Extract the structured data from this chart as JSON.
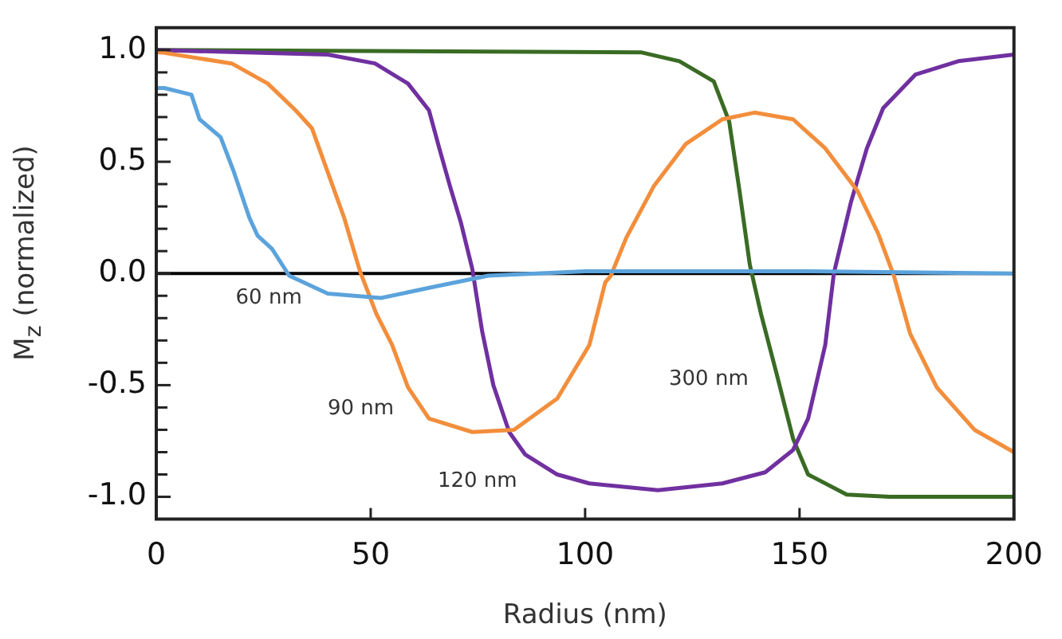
{
  "chart_data": {
    "type": "line",
    "xlabel": "Radius (nm)",
    "ylabel": "M$_{z}$ (normalized)",
    "xlim": [
      0,
      200
    ],
    "xticks": [
      0,
      50,
      100,
      150,
      200
    ],
    "ylim": [
      -1.1,
      1.1
    ],
    "yticks": [
      {
        "value": -1.0,
        "label": "-1.0"
      },
      {
        "value": -0.9,
        "label": null
      },
      {
        "value": -0.8,
        "label": null
      },
      {
        "value": -0.7,
        "label": null
      },
      {
        "value": -0.6,
        "label": null
      },
      {
        "value": -0.5,
        "label": "-0.5"
      },
      {
        "value": -0.4,
        "label": null
      },
      {
        "value": -0.3,
        "label": null
      },
      {
        "value": -0.2,
        "label": null
      },
      {
        "value": -0.1,
        "label": null
      },
      {
        "value": 0,
        "label": "0.0"
      },
      {
        "value": 0.1,
        "label": null
      },
      {
        "value": 0.2,
        "label": null
      },
      {
        "value": 0.3,
        "label": null
      },
      {
        "value": 0.4,
        "label": null
      },
      {
        "value": 0.5,
        "label": "0.5"
      },
      {
        "value": 0.6,
        "label": null
      },
      {
        "value": 0.7,
        "label": null
      },
      {
        "value": 0.8,
        "label": null
      },
      {
        "value": 0.9,
        "label": null
      },
      {
        "value": 1.0,
        "label": "1.0"
      }
    ],
    "grid": false,
    "legend": false,
    "marker": "none",
    "line_style": "solid",
    "ref_lines": [
      {
        "axis": "y",
        "value": 0,
        "color": "#000000"
      }
    ],
    "series": [
      {
        "name": "60 nm",
        "color": "#5ba3dc",
        "x": [
          0,
          1.9,
          8.2,
          10.1,
          15,
          18,
          21.7,
          23.6,
          27,
          31,
          40,
          52.4,
          64.7,
          77.4,
          100,
          150,
          200
        ],
        "values": [
          0.83,
          0.83,
          0.8,
          0.69,
          0.61,
          0.46,
          0.25,
          0.17,
          0.11,
          -0.01,
          -0.09,
          -0.11,
          -0.06,
          -0.01,
          0.01,
          0.01,
          0.0
        ]
      },
      {
        "name": "90 nm",
        "color": "#f28e3c",
        "x": [
          0,
          1,
          17.6,
          26,
          32.5,
          36.3,
          39.3,
          43.8,
          47.5,
          51.3,
          55,
          58.7,
          63.6,
          73.7,
          83.4,
          93.5,
          101,
          104.7,
          106,
          109.6,
          116,
          123.5,
          132,
          139.5,
          148.5,
          156,
          163.5,
          168.3,
          172,
          175.8,
          182,
          190.8,
          200
        ],
        "values": [
          0.99,
          0.99,
          0.94,
          0.85,
          0.73,
          0.65,
          0.49,
          0.25,
          0.01,
          -0.18,
          -0.32,
          -0.51,
          -0.65,
          -0.71,
          -0.7,
          -0.56,
          -0.32,
          -0.04,
          -0.01,
          0.16,
          0.39,
          0.58,
          0.69,
          0.72,
          0.69,
          0.56,
          0.37,
          0.18,
          -0.01,
          -0.27,
          -0.51,
          -0.7,
          -0.8
        ]
      },
      {
        "name": "120 nm",
        "color": "#7030a0",
        "x": [
          0,
          40,
          51,
          58.7,
          63.6,
          66,
          68.5,
          71,
          73.7,
          76,
          78.6,
          82.3,
          86,
          93.5,
          101,
          117,
          132,
          142,
          148.5,
          152,
          156,
          158,
          162,
          165.7,
          169.5,
          177,
          187,
          200
        ],
        "values": [
          1.0,
          0.98,
          0.94,
          0.85,
          0.73,
          0.56,
          0.39,
          0.23,
          0.02,
          -0.26,
          -0.5,
          -0.71,
          -0.81,
          -0.9,
          -0.94,
          -0.97,
          -0.94,
          -0.89,
          -0.79,
          -0.65,
          -0.32,
          0.0,
          0.32,
          0.56,
          0.74,
          0.89,
          0.95,
          0.98
        ]
      },
      {
        "name": "300 nm",
        "color": "#3a6b24",
        "x": [
          0,
          113,
          122,
          130,
          133.6,
          136,
          138.4,
          141,
          144.8,
          148.5,
          152,
          161,
          171,
          200
        ],
        "values": [
          1.0,
          0.99,
          0.95,
          0.86,
          0.68,
          0.37,
          0.04,
          -0.18,
          -0.46,
          -0.74,
          -0.9,
          -0.99,
          -1.0,
          -1.0
        ]
      }
    ]
  }
}
